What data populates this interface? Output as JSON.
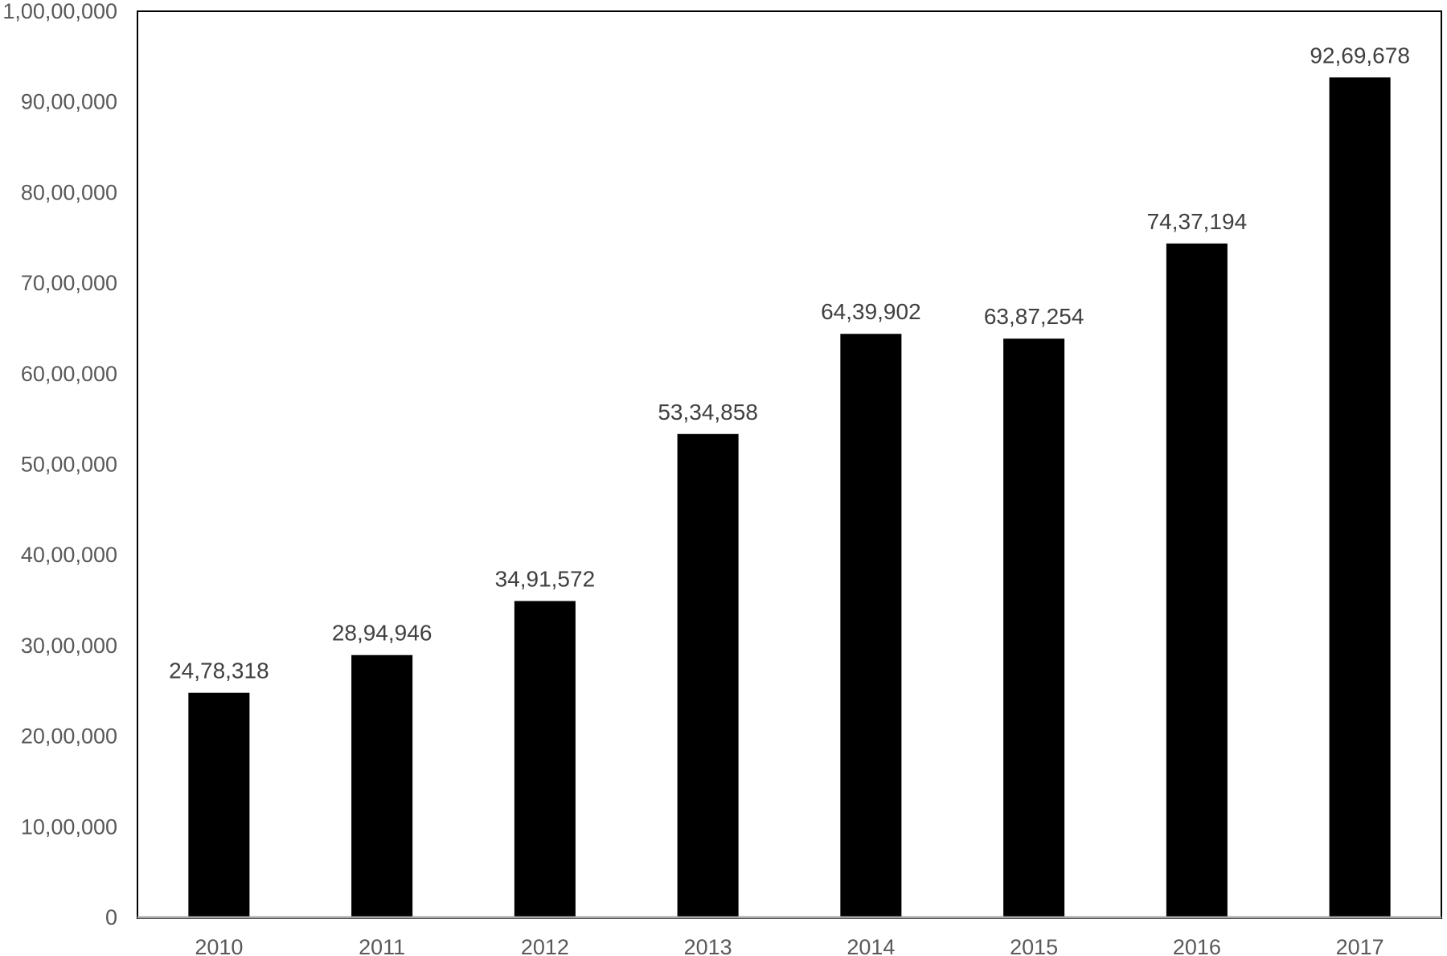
{
  "chart_data": {
    "type": "bar",
    "categories": [
      "2010",
      "2011",
      "2012",
      "2013",
      "2014",
      "2015",
      "2016",
      "2017"
    ],
    "values": [
      2478318,
      2894946,
      3491572,
      5334858,
      6439902,
      6387254,
      7437194,
      9269678
    ],
    "data_labels": [
      "24,78,318",
      "28,94,946",
      "34,91,572",
      "53,34,858",
      "64,39,902",
      "63,87,254",
      "74,37,194",
      "92,69,678"
    ],
    "ylim": [
      0,
      10000000
    ],
    "yticks": [
      0,
      1000000,
      2000000,
      3000000,
      4000000,
      5000000,
      6000000,
      7000000,
      8000000,
      9000000,
      10000000
    ],
    "ytick_labels": [
      "0",
      "10,00,000",
      "20,00,000",
      "30,00,000",
      "40,00,000",
      "50,00,000",
      "60,00,000",
      "70,00,000",
      "80,00,000",
      "90,00,000",
      "1,00,00,000"
    ],
    "grid": false,
    "legend": "none",
    "bar_color": "#000000",
    "axis_color": "#a6a6a6",
    "frame_color": "#000000"
  }
}
